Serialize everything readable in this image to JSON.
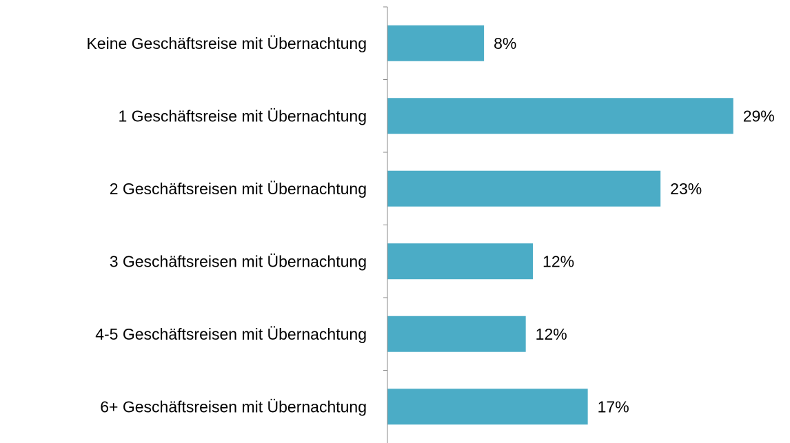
{
  "chart_data": {
    "type": "barh",
    "categories": [
      "Keine Geschäftsreise mit Übernachtung",
      "1 Geschäftsreise mit Übernachtung",
      "2 Geschäftsreisen mit Übernachtung",
      "3 Geschäftsreisen mit Übernachtung",
      "4-5 Geschäftsreisen mit Übernachtung",
      "6+ Geschäftsreisen mit Übernachtung"
    ],
    "values": [
      8.1,
      29.0,
      22.9,
      12.2,
      11.6,
      16.8
    ],
    "value_labels": [
      "8%",
      "29%",
      "23%",
      "12%",
      "12%",
      "17%"
    ],
    "color": "#4bacc6",
    "xlim": [
      0,
      30
    ]
  }
}
